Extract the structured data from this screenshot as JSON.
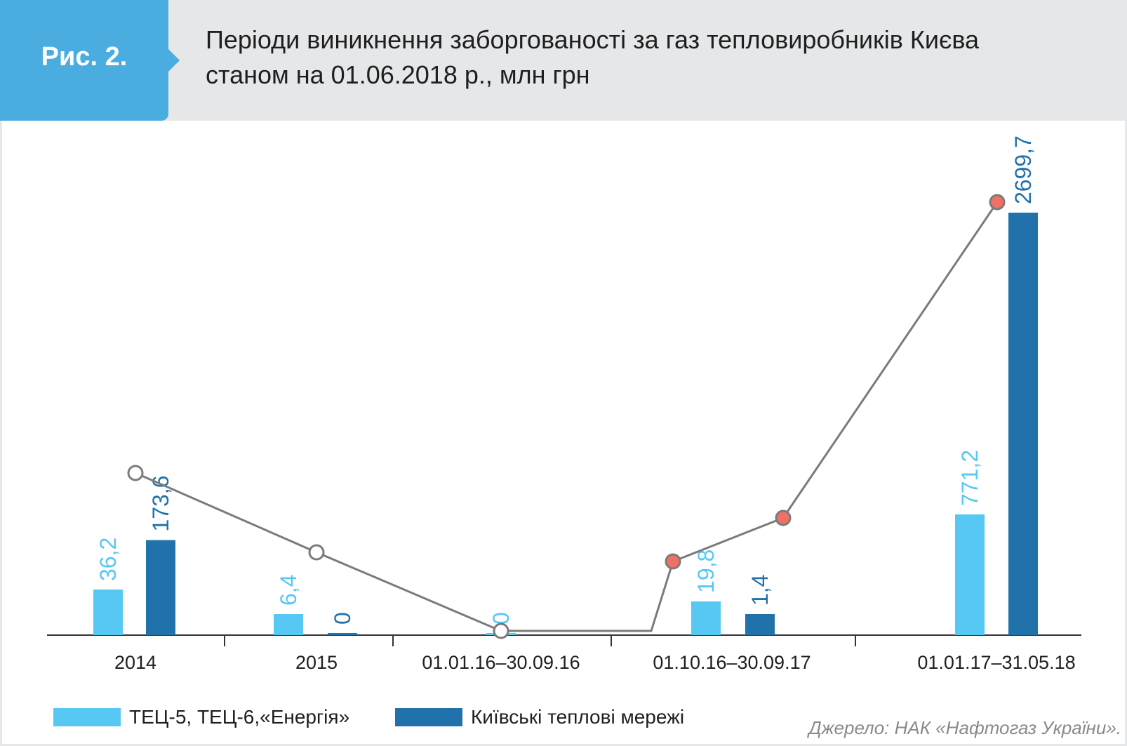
{
  "figure": {
    "label": "Рис. 2.",
    "title_line1": "Періоди виникнення заборгованості за газ тепловиробників Києва",
    "title_line2": "станом на 01.06.2018 р., млн грн"
  },
  "colors": {
    "badge": "#4aacdf",
    "header_bg": "#e6e7e9",
    "light_blue": "#56c8f3",
    "dark_blue": "#2171ab",
    "line": "#7b7b7b",
    "marker_red": "#f07065",
    "marker_hollow": "#ffffff"
  },
  "chart_data": {
    "type": "bar",
    "categories": [
      "2014",
      "2015",
      "01.01.16–30.09.16",
      "01.10.16–30.09.17",
      "01.01.17–31.05.18"
    ],
    "series": [
      {
        "name": "ТЕЦ-5, ТЕЦ-6,«Енергія»",
        "values": [
          36.2,
          6.4,
          0,
          19.8,
          771.2
        ],
        "labels": [
          "36,2",
          "6,4",
          "0",
          "19,8",
          "771,2"
        ],
        "color": "#56c8f3"
      },
      {
        "name": "Київські теплові мережі",
        "values": [
          173.6,
          0,
          null,
          1.4,
          2699.7
        ],
        "labels": [
          "173,6",
          "0",
          "",
          "1,4",
          "2699,7"
        ],
        "color": "#2171ab"
      }
    ],
    "overlay_line": {
      "type": "line",
      "style": "grey line with circular markers, hollow for earlier periods, red-filled for later periods",
      "marker_fill": [
        "hollow",
        "hollow",
        "hollow",
        "red",
        "red",
        "red"
      ]
    },
    "title": "Періоди виникнення заборгованості за газ тепловиробників Києва станом на 01.06.2018 р., млн грн",
    "legend_position": "bottom-left",
    "grid": false
  },
  "source_note": "Джерело: НАК «Нафтогаз України»."
}
